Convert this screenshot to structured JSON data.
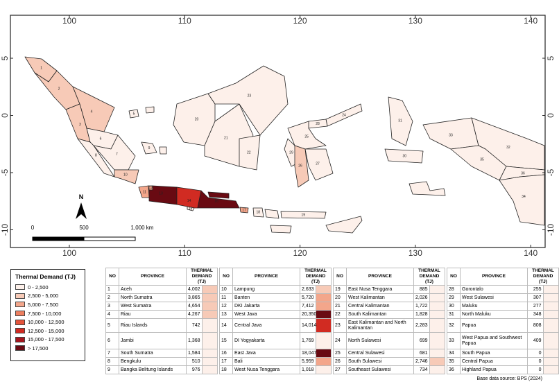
{
  "map": {
    "x_labels": [
      "100",
      "110",
      "120",
      "130",
      "140"
    ],
    "y_labels": [
      "5",
      "0",
      "-5",
      "-10"
    ],
    "scale": [
      "0",
      "500",
      "1,000 km"
    ],
    "north": "N"
  },
  "legend": {
    "title": "Thermal Demand (TJ)",
    "items": [
      {
        "label": "0 - 2,500",
        "color": "#fdf0ea"
      },
      {
        "label": "2,500 - 5,000",
        "color": "#f7cab7"
      },
      {
        "label": "5,000 - 7,500",
        "color": "#f3a68b"
      },
      {
        "label": "7,500 - 10,000",
        "color": "#ee7f60"
      },
      {
        "label": "10,000 - 12,500",
        "color": "#e5543b"
      },
      {
        "label": "12,500 - 15,000",
        "color": "#d12b22"
      },
      {
        "label": "15,000 - 17,500",
        "color": "#a5151d"
      },
      {
        "label": "> 17,500",
        "color": "#690a12"
      }
    ]
  },
  "table": {
    "headers": [
      "NO",
      "PROVINCE",
      "THERMAL DEMAND (TJ)"
    ],
    "groups": [
      [
        {
          "no": "1",
          "province": "Aceh",
          "demand": "4,002",
          "color": "#f7cab7"
        },
        {
          "no": "2",
          "province": "North Sumatra",
          "demand": "3,865",
          "color": "#f7cab7"
        },
        {
          "no": "3",
          "province": "West Sumatra",
          "demand": "4,654",
          "color": "#f7cab7"
        },
        {
          "no": "4",
          "province": "Riau",
          "demand": "4,267",
          "color": "#f7cab7"
        },
        {
          "no": "5",
          "province": "Riau Islands",
          "demand": "742",
          "color": "#fdf0ea"
        },
        {
          "no": "6",
          "province": "Jambi",
          "demand": "1,368",
          "color": "#fdf0ea"
        },
        {
          "no": "7",
          "province": "South Sumatra",
          "demand": "1,584",
          "color": "#fdf0ea"
        },
        {
          "no": "8",
          "province": "Bengkulu",
          "demand": "510",
          "color": "#fdf0ea"
        },
        {
          "no": "9",
          "province": "Bangka Belitung Islands",
          "demand": "976",
          "color": "#fdf0ea"
        }
      ],
      [
        {
          "no": "10",
          "province": "Lampung",
          "demand": "2,633",
          "color": "#f7cab7"
        },
        {
          "no": "11",
          "province": "Banten",
          "demand": "5,720",
          "color": "#f3a68b"
        },
        {
          "no": "12",
          "province": "DKI Jakarta",
          "demand": "7,412",
          "color": "#f3a68b"
        },
        {
          "no": "13",
          "province": "West Java",
          "demand": "20,350",
          "color": "#690a12"
        },
        {
          "no": "14",
          "province": "Central Java",
          "demand": "14,014",
          "color": "#d12b22"
        },
        {
          "no": "15",
          "province": "DI Yogyakarta",
          "demand": "1,769",
          "color": "#fdf0ea"
        },
        {
          "no": "16",
          "province": "East Java",
          "demand": "18,047",
          "color": "#690a12"
        },
        {
          "no": "17",
          "province": "Bali",
          "demand": "5,959",
          "color": "#f3a68b"
        },
        {
          "no": "18",
          "province": "West Nusa Tenggara",
          "demand": "1,018",
          "color": "#fdf0ea"
        }
      ],
      [
        {
          "no": "19",
          "province": "East Nusa Tenggara",
          "demand": "885",
          "color": "#fdf0ea"
        },
        {
          "no": "20",
          "province": "West Kalimantan",
          "demand": "2,026",
          "color": "#fdf0ea"
        },
        {
          "no": "21",
          "province": "Central Kalimantan",
          "demand": "1,722",
          "color": "#fdf0ea"
        },
        {
          "no": "22",
          "province": "South Kalimantan",
          "demand": "1,828",
          "color": "#fdf0ea"
        },
        {
          "no": "23",
          "province": "East Kalimantan and North Kalimantan",
          "demand": "2,283",
          "color": "#fdf0ea"
        },
        {
          "no": "24",
          "province": "North Sulawesi",
          "demand": "699",
          "color": "#fdf0ea"
        },
        {
          "no": "25",
          "province": "Central Sulawesi",
          "demand": "681",
          "color": "#fdf0ea"
        },
        {
          "no": "26",
          "province": "South Sulawesi",
          "demand": "2,746",
          "color": "#f7cab7"
        },
        {
          "no": "27",
          "province": "Southeast Sulawesi",
          "demand": "734",
          "color": "#fdf0ea"
        }
      ],
      [
        {
          "no": "28",
          "province": "Gorontalo",
          "demand": "255",
          "color": "#fdf0ea"
        },
        {
          "no": "29",
          "province": "West Sulawesi",
          "demand": "307",
          "color": "#fdf0ea"
        },
        {
          "no": "30",
          "province": "Maluku",
          "demand": "277",
          "color": "#fdf0ea"
        },
        {
          "no": "31",
          "province": "North Maluku",
          "demand": "348",
          "color": "#fdf0ea"
        },
        {
          "no": "32",
          "province": "Papua",
          "demand": "808",
          "color": "#fdf0ea"
        },
        {
          "no": "33",
          "province": "West Papua and Southwest Papua",
          "demand": "409",
          "color": "#fdf0ea"
        },
        {
          "no": "34",
          "province": "South Papua",
          "demand": "0",
          "color": "#fdf0ea"
        },
        {
          "no": "35",
          "province": "Central Papua",
          "demand": "0",
          "color": "#fdf0ea"
        },
        {
          "no": "36",
          "province": "Highland Papua",
          "demand": "0",
          "color": "#fdf0ea"
        }
      ]
    ]
  },
  "source": "Base data source: BPS (2024)"
}
